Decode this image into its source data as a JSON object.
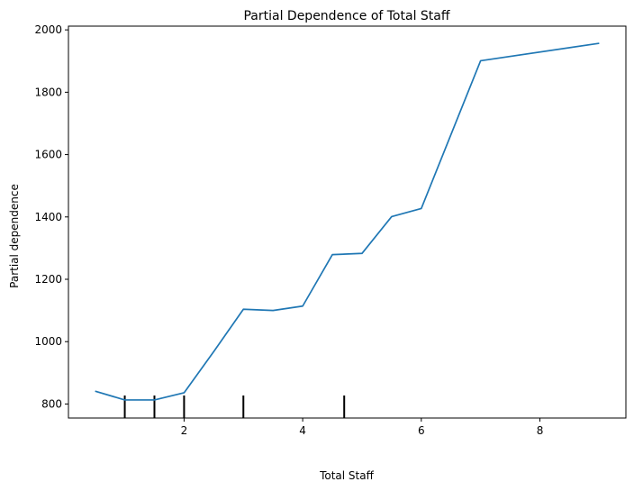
{
  "chart_data": {
    "type": "line",
    "title": "Partial Dependence of Total Staff",
    "xlabel": "Total Staff",
    "ylabel": "Partial dependence",
    "xlim": [
      0.05,
      9.45
    ],
    "ylim": [
      755,
      2012
    ],
    "x_ticks": [
      2,
      4,
      6,
      8
    ],
    "y_ticks": [
      800,
      1000,
      1200,
      1400,
      1600,
      1800,
      2000
    ],
    "series": [
      {
        "color": "#1f77b4",
        "x": [
          0.5,
          1.0,
          1.5,
          2.0,
          2.5,
          3.0,
          3.5,
          4.0,
          4.5,
          5.0,
          5.5,
          6.0,
          7.0,
          9.0
        ],
        "y": [
          841,
          813,
          813,
          836,
          968,
          1104,
          1100,
          1114,
          1279,
          1283,
          1401,
          1427,
          1901,
          1957
        ]
      }
    ],
    "rug": [
      1.0,
      1.5,
      2.0,
      3.0,
      4.7
    ],
    "grid": false,
    "legend": false
  }
}
